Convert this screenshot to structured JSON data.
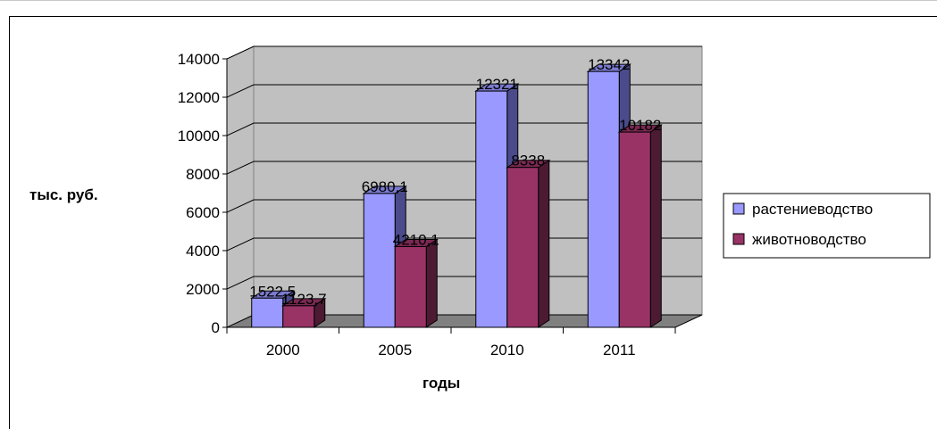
{
  "chart_data": {
    "type": "bar",
    "categories": [
      "2000",
      "2005",
      "2010",
      "2011"
    ],
    "series": [
      {
        "name": "растениеводство",
        "values": [
          1522.5,
          6980.1,
          12321,
          13342
        ],
        "labels": [
          "1522,5",
          "6980,1",
          "12321",
          "13342"
        ]
      },
      {
        "name": "животноводство",
        "values": [
          1123.7,
          4210.1,
          8338,
          10182
        ],
        "labels": [
          "1123,7",
          "4210,1",
          "8338",
          "10182"
        ]
      }
    ],
    "yticks": [
      "0",
      "2000",
      "4000",
      "6000",
      "8000",
      "10000",
      "12000",
      "14000"
    ],
    "ylim": [
      0,
      14000
    ],
    "xlabel": "годы",
    "ylabel": "тыс. руб.",
    "legend_position": "right",
    "grid": true,
    "colors": {
      "series0_front": "#9999ff",
      "series0_side": "#4b4b8c",
      "series0_top": "#7b7bd0",
      "series1_front": "#993366",
      "series1_side": "#4d1a33",
      "series1_top": "#7a2952",
      "wall": "#c0c0c0",
      "floor": "#808080"
    }
  }
}
